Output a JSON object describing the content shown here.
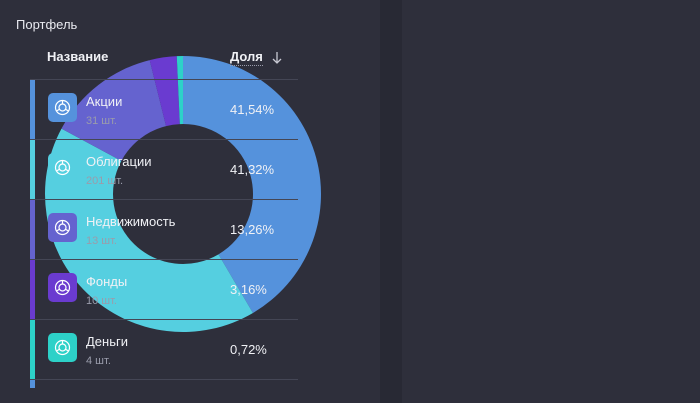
{
  "panel": {
    "title": "Портфель"
  },
  "table": {
    "header_name": "Название",
    "header_share": "Доля"
  },
  "colors": {
    "stocks": "#5592dc",
    "bonds": "#55cfe0",
    "realty": "#6563cf",
    "funds": "#6a3bd0",
    "cash": "#2dd1c8"
  },
  "chart_data": {
    "type": "pie",
    "donut": true,
    "title": "Портфель",
    "categories": [
      "Акции",
      "Облигации",
      "Недвижимость",
      "Фонды",
      "Деньги"
    ],
    "values": [
      41.54,
      41.32,
      13.26,
      3.16,
      0.72
    ],
    "unit": "%"
  },
  "rows": [
    {
      "name": "Акции",
      "count": "31 шт.",
      "share": "41,54%",
      "color": "#5592dc",
      "icon": "asset-icon"
    },
    {
      "name": "Облигации",
      "count": "201 шт.",
      "share": "41,32%",
      "color": "#55cfe0",
      "icon": "asset-icon"
    },
    {
      "name": "Недвижимость",
      "count": "13 шт.",
      "share": "13,26%",
      "color": "#6563cf",
      "icon": "asset-icon"
    },
    {
      "name": "Фонды",
      "count": "10 шт.",
      "share": "3,16%",
      "color": "#6a3bd0",
      "icon": "asset-icon"
    },
    {
      "name": "Деньги",
      "count": "4 шт.",
      "share": "0,72%",
      "color": "#2dd1c8",
      "icon": "asset-icon"
    }
  ]
}
